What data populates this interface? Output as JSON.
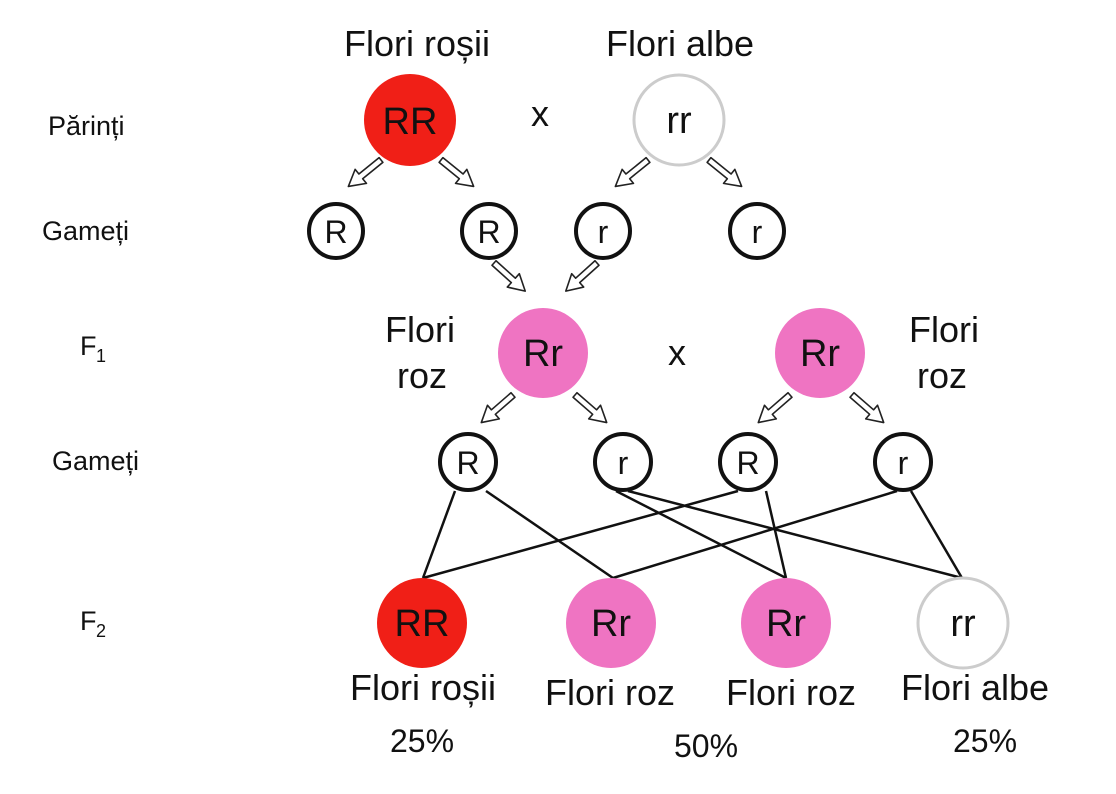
{
  "rows": {
    "parents": "Părinți",
    "gametes1": "Gameți",
    "f1_letter": "F",
    "f1_sub": "1",
    "gametes2": "Gameți",
    "f2_letter": "F",
    "f2_sub": "2"
  },
  "parents": {
    "left_label": "Flori roșii",
    "left_genotype": "RR",
    "right_label": "Flori albe",
    "right_genotype": "rr",
    "cross": "x"
  },
  "gametes1": [
    "R",
    "R",
    "r",
    "r"
  ],
  "f1": {
    "left_label_line1": "Flori",
    "left_label_line2": "roz",
    "left_genotype": "Rr",
    "cross": "x",
    "right_genotype": "Rr",
    "right_label_line1": "Flori",
    "right_label_line2": "roz"
  },
  "gametes2": [
    "R",
    "r",
    "R",
    "r"
  ],
  "f2": [
    {
      "genotype": "RR",
      "label": "Flori roșii"
    },
    {
      "genotype": "Rr",
      "label": "Flori roz"
    },
    {
      "genotype": "Rr",
      "label": "Flori roz"
    },
    {
      "genotype": "rr",
      "label": "Flori albe"
    }
  ],
  "percentages": {
    "red": "25%",
    "pink": "50%",
    "white": "25%"
  },
  "colors": {
    "red": "#f01f17",
    "pink": "#ef74c2",
    "white_border": "#cccccc"
  }
}
